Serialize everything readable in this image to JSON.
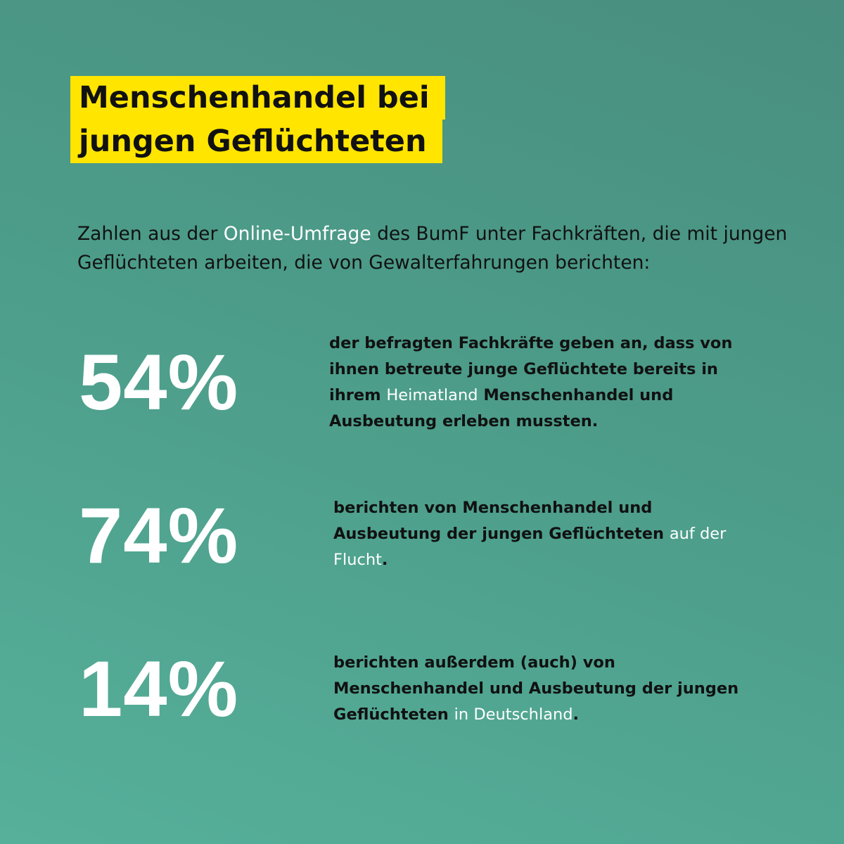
{
  "title": {
    "line1": "Menschenhandel bei",
    "line2": "jungen Geflüchteten"
  },
  "intro": {
    "part1": "Zahlen aus der ",
    "highlight": "Online-Umfrage",
    "part2": " des BumF unter Fachkräften, die mit jungen Geflüchteten arbeiten, die von Gewalterfahrungen berichten:"
  },
  "stats": [
    {
      "value": "54%",
      "text1": "der befragten Fachkräfte geben an, dass von ihnen betreute junge Geflüchtete bereits in ihrem ",
      "highlight": "Heimatland",
      "text2": " Menschenhandel und Ausbeutung erleben mussten."
    },
    {
      "value": "74%",
      "text1": "berichten von Menschenhandel und Ausbeutung der jungen Geflüchteten ",
      "highlight": "auf der Flucht",
      "text2": "."
    },
    {
      "value": "14%",
      "text1": "berichten außerdem (auch) von Menschenhandel und Ausbeutung der jungen Geflüchteten ",
      "highlight": "in Deutschland",
      "text2": "."
    }
  ],
  "colors": {
    "accent_yellow": "#ffe500",
    "background": "#4f9f8b",
    "text_dark": "#111111",
    "text_light": "#ffffff"
  }
}
